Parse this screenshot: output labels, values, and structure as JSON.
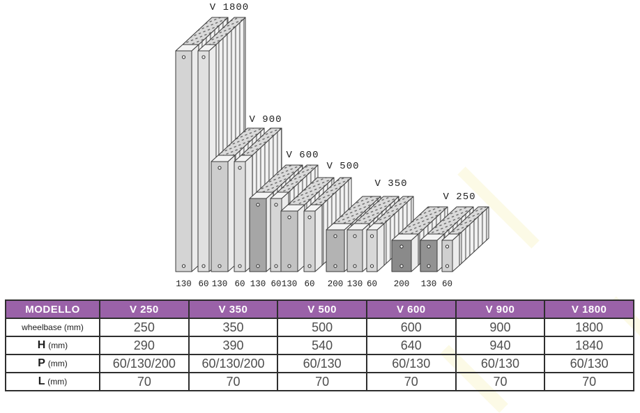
{
  "diagram": {
    "groups": [
      {
        "label": "V 1800",
        "dims": [
          "130",
          "60"
        ],
        "panel_colors": [
          "#d4d4d4",
          "#e0e0e0"
        ]
      },
      {
        "label": "V 900",
        "dims": [
          "130",
          "60"
        ],
        "panel_colors": [
          "#cdcdcd",
          "#dcdcdc"
        ]
      },
      {
        "label": "V 600",
        "dims": [
          "130",
          "60"
        ],
        "panel_colors": [
          "#a6a6a6",
          "#d6d6d6"
        ]
      },
      {
        "label": "V 500",
        "dims": [
          "130",
          "60"
        ],
        "panel_colors": [
          "#c2c2c2",
          "#d4d4d4"
        ]
      },
      {
        "label": "V 350",
        "dims": [
          "200",
          "130",
          "60"
        ],
        "panel_colors": [
          "#b3b3b3",
          "#cbcbcb",
          "#d8d8d8"
        ]
      },
      {
        "label": "V 250",
        "dims": [
          "200",
          "130",
          "60"
        ],
        "panel_colors": [
          "#8a8a8a",
          "#929292",
          "#d0d0d0"
        ]
      }
    ]
  },
  "table": {
    "header_bg": "#9a62a8",
    "header": [
      "MODELLO",
      "V 250",
      "V 350",
      "V 500",
      "V 600",
      "V 900",
      "V 1800"
    ],
    "rows": [
      {
        "label": "wheelbase",
        "unit": "(mm)",
        "bold_label": false,
        "values": [
          "250",
          "350",
          "500",
          "600",
          "900",
          "1800"
        ]
      },
      {
        "label": "H",
        "unit": "(mm)",
        "bold_label": true,
        "values": [
          "290",
          "390",
          "540",
          "640",
          "940",
          "1840"
        ]
      },
      {
        "label": "P",
        "unit": "(mm)",
        "bold_label": true,
        "values": [
          "60/130/200",
          "60/130/200",
          "60/130",
          "60/130",
          "60/130",
          "60/130"
        ]
      },
      {
        "label": "L",
        "unit": "(mm)",
        "bold_label": true,
        "values": [
          "70",
          "70",
          "70",
          "70",
          "70",
          "70"
        ]
      }
    ]
  }
}
